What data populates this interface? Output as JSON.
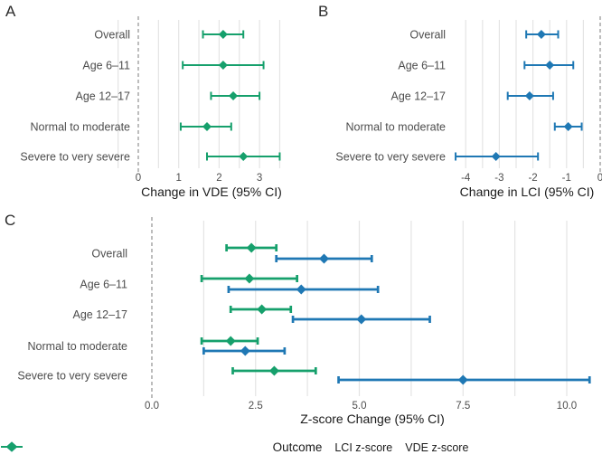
{
  "figure_title": "",
  "accent_colors": {
    "lci_blue": "#1f78b4",
    "vde_green": "#16a06c",
    "gridline": "#e4e4e4",
    "zero_line": "#999999",
    "label_gray": "#4d4d4d"
  },
  "legend": {
    "title": "Outcome",
    "items": [
      {
        "label": "LCI z-score",
        "color": "#1f78b4"
      },
      {
        "label": "VDE z-score",
        "color": "#16a06c"
      }
    ]
  },
  "chart_data": [
    {
      "type": "forest",
      "panel": "A",
      "xlabel": "Change in VDE (95% CI)",
      "categories": [
        "Overall",
        "Age 6–11",
        "Age 12–17",
        "Normal to moderate",
        "Severe to very severe"
      ],
      "x_ticks": {
        "values": [
          0,
          1,
          2,
          3
        ],
        "labels": [
          "0",
          "1",
          "2",
          "3"
        ]
      },
      "gridlines": [
        -0.5,
        0.5,
        1,
        1.5,
        2,
        2.5,
        3,
        3.5
      ],
      "zero_line": 0,
      "xlim": [
        -0.55,
        3.9
      ],
      "series": [
        {
          "name": "Change in VDE",
          "color": "#16a06c",
          "points": [
            {
              "category": "Overall",
              "estimate": 2.1,
              "ci_low": 1.6,
              "ci_high": 2.6
            },
            {
              "category": "Age 6–11",
              "estimate": 2.1,
              "ci_low": 1.1,
              "ci_high": 3.1
            },
            {
              "category": "Age 12–17",
              "estimate": 2.35,
              "ci_low": 1.8,
              "ci_high": 3.0
            },
            {
              "category": "Normal to moderate",
              "estimate": 1.7,
              "ci_low": 1.05,
              "ci_high": 2.3
            },
            {
              "category": "Severe to very severe",
              "estimate": 2.6,
              "ci_low": 1.7,
              "ci_high": 3.5
            }
          ]
        }
      ]
    },
    {
      "type": "forest",
      "panel": "B",
      "xlabel": "Change in LCI (95% CI)",
      "categories": [
        "Overall",
        "Age 6–11",
        "Age 12–17",
        "Normal to moderate",
        "Severe to very severe"
      ],
      "x_ticks": {
        "values": [
          -4,
          -3,
          -2,
          -1,
          0
        ],
        "labels": [
          "-4",
          "-3",
          "-2",
          "-1",
          "0"
        ]
      },
      "gridlines": [
        -4,
        -3.5,
        -3,
        -2.5,
        -2,
        -1.5,
        -1,
        -0.5
      ],
      "zero_line": 0,
      "xlim": [
        -4.4,
        0.05
      ],
      "series": [
        {
          "name": "Change in LCI",
          "color": "#1f78b4",
          "points": [
            {
              "category": "Overall",
              "estimate": -1.75,
              "ci_low": -2.2,
              "ci_high": -1.25
            },
            {
              "category": "Age 6–11",
              "estimate": -1.5,
              "ci_low": -2.25,
              "ci_high": -0.8
            },
            {
              "category": "Age 12–17",
              "estimate": -2.1,
              "ci_low": -2.75,
              "ci_high": -1.4
            },
            {
              "category": "Normal to moderate",
              "estimate": -0.95,
              "ci_low": -1.35,
              "ci_high": -0.55
            },
            {
              "category": "Severe to very severe",
              "estimate": -3.1,
              "ci_low": -4.3,
              "ci_high": -1.85
            }
          ]
        }
      ]
    },
    {
      "type": "forest",
      "panel": "C",
      "xlabel": "Z-score Change (95% CI)",
      "categories": [
        "Overall",
        "Age 6–11",
        "Age 12–17",
        "Normal to moderate",
        "Severe to very severe"
      ],
      "x_ticks": {
        "values": [
          0,
          2.5,
          5,
          7.5,
          10
        ],
        "labels": [
          "0.0",
          "2.5",
          "5.0",
          "7.5",
          "10.0"
        ]
      },
      "gridlines": [
        1.25,
        2.5,
        3.75,
        5,
        6.25,
        7.5,
        8.75,
        10
      ],
      "zero_line": 0,
      "xlim": [
        -0.2,
        10.7
      ],
      "series": [
        {
          "name": "VDE z-score",
          "color": "#16a06c",
          "points": [
            {
              "category": "Overall",
              "estimate": 2.4,
              "ci_low": 1.8,
              "ci_high": 3.0
            },
            {
              "category": "Age 6–11",
              "estimate": 2.35,
              "ci_low": 1.2,
              "ci_high": 3.5
            },
            {
              "category": "Age 12–17",
              "estimate": 2.65,
              "ci_low": 1.9,
              "ci_high": 3.35
            },
            {
              "category": "Normal to moderate",
              "estimate": 1.9,
              "ci_low": 1.2,
              "ci_high": 2.55
            },
            {
              "category": "Severe to very severe",
              "estimate": 2.95,
              "ci_low": 1.95,
              "ci_high": 3.95
            }
          ]
        },
        {
          "name": "LCI z-score",
          "color": "#1f78b4",
          "points": [
            {
              "category": "Overall",
              "estimate": 4.15,
              "ci_low": 3.0,
              "ci_high": 5.3
            },
            {
              "category": "Age 6–11",
              "estimate": 3.6,
              "ci_low": 1.85,
              "ci_high": 5.45
            },
            {
              "category": "Age 12–17",
              "estimate": 5.05,
              "ci_low": 3.4,
              "ci_high": 6.7
            },
            {
              "category": "Normal to moderate",
              "estimate": 2.25,
              "ci_low": 1.25,
              "ci_high": 3.2
            },
            {
              "category": "Severe to very severe",
              "estimate": 7.5,
              "ci_low": 4.5,
              "ci_high": 10.55
            }
          ]
        }
      ]
    }
  ]
}
